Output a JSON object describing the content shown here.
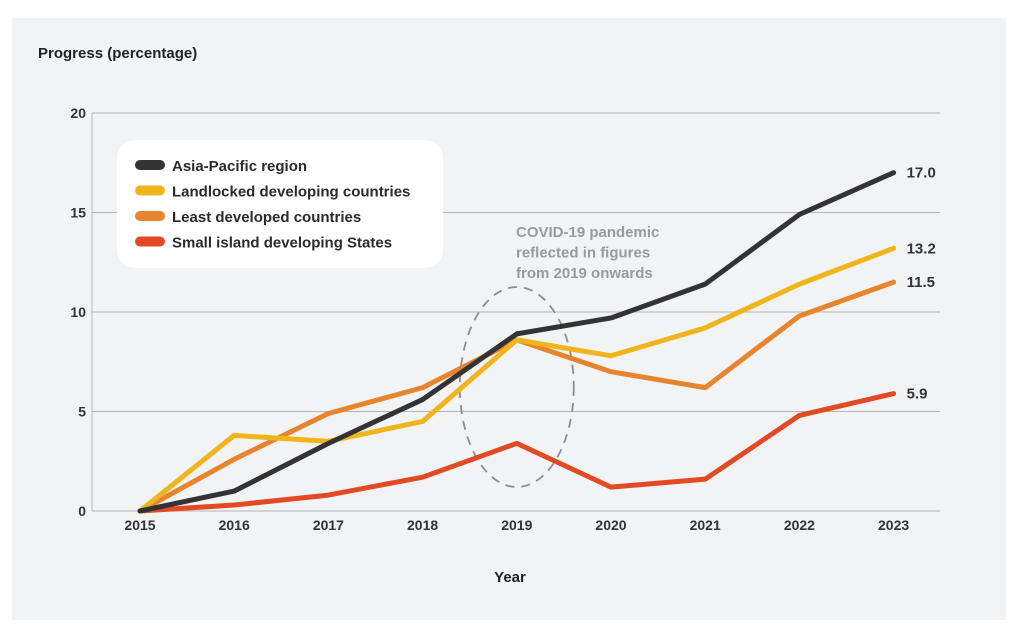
{
  "chart_data": {
    "type": "line",
    "ylabel": "Progress (percentage)",
    "xlabel": "Year",
    "x": [
      "2015",
      "2016",
      "2017",
      "2018",
      "2019",
      "2020",
      "2021",
      "2022",
      "2023"
    ],
    "ylim": [
      0,
      20
    ],
    "yticks": [
      "0",
      "5",
      "10",
      "15",
      "20"
    ],
    "grid": true,
    "legend_position": "top-left",
    "series": [
      {
        "name": "Asia-Pacific region",
        "color": "#333333",
        "values": [
          0,
          1.0,
          3.4,
          5.6,
          8.9,
          9.7,
          11.4,
          14.9,
          17.0
        ],
        "end_label": "17.0"
      },
      {
        "name": "Landlocked developing countries",
        "color": "#f0b51c",
        "values": [
          0,
          3.8,
          3.5,
          4.5,
          8.6,
          7.8,
          9.2,
          11.4,
          13.2
        ],
        "end_label": "13.2"
      },
      {
        "name": "Least developed countries",
        "color": "#e8842e",
        "values": [
          0,
          2.6,
          4.9,
          6.2,
          8.6,
          7.0,
          6.2,
          9.8,
          11.5
        ],
        "end_label": "11.5"
      },
      {
        "name": "Small island developing States",
        "color": "#e24a24",
        "values": [
          0,
          0.3,
          0.8,
          1.7,
          3.4,
          1.2,
          1.6,
          4.8,
          5.9
        ],
        "end_label": "5.9"
      }
    ],
    "annotation": {
      "lines": [
        "COVID-19 pandemic",
        "reflected in figures",
        "from 2019 onwards"
      ],
      "highlight_year": "2019"
    }
  }
}
